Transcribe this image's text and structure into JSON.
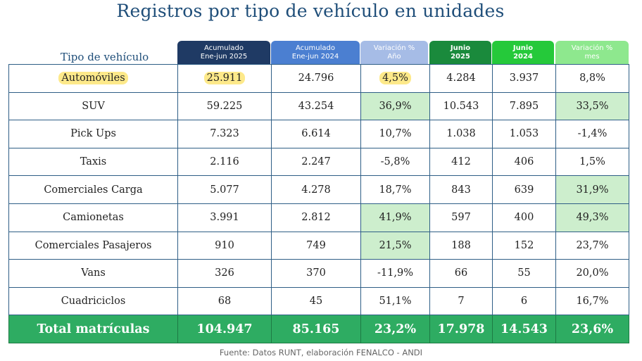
{
  "title": "Registros por tipo de vehículo en unidades",
  "row_header_label": "Tipo de vehículo",
  "columns": [
    {
      "line1": "Acumulado",
      "line2": "Ene-jun 2025",
      "color": "#1f3a64"
    },
    {
      "line1": "Acumulado",
      "line2": "Ene-jun 2024",
      "color": "#4b7fd1"
    },
    {
      "line1": "Variación %",
      "line2": "Año",
      "color": "#a6bce6"
    },
    {
      "line1": "Junio",
      "line2": "2025",
      "color": "#1a8a3c"
    },
    {
      "line1": "Junio",
      "line2": "2024",
      "color": "#25c93a"
    },
    {
      "line1": "Variación %",
      "line2": "mes",
      "color": "#8ee88e"
    }
  ],
  "rows": [
    {
      "label": "Automóviles",
      "values": [
        "25.911",
        "24.796",
        "4,5%",
        "4.284",
        "3.937",
        "8,8%"
      ]
    },
    {
      "label": "SUV",
      "values": [
        "59.225",
        "43.254",
        "36,9%",
        "10.543",
        "7.895",
        "33,5%"
      ]
    },
    {
      "label": "Pick Ups",
      "values": [
        "7.323",
        "6.614",
        "10,7%",
        "1.038",
        "1.053",
        "-1,4%"
      ]
    },
    {
      "label": "Taxis",
      "values": [
        "2.116",
        "2.247",
        "-5,8%",
        "412",
        "406",
        "1,5%"
      ]
    },
    {
      "label": "Comerciales Carga",
      "values": [
        "5.077",
        "4.278",
        "18,7%",
        "843",
        "639",
        "31,9%"
      ]
    },
    {
      "label": "Camionetas",
      "values": [
        "3.991",
        "2.812",
        "41,9%",
        "597",
        "400",
        "49,3%"
      ]
    },
    {
      "label": "Comerciales Pasajeros",
      "values": [
        "910",
        "749",
        "21,5%",
        "188",
        "152",
        "23,7%"
      ]
    },
    {
      "label": "Vans",
      "values": [
        "326",
        "370",
        "-11,9%",
        "66",
        "55",
        "20,0%"
      ]
    },
    {
      "label": "Cuadriciclos",
      "values": [
        "68",
        "45",
        "51,1%",
        "7",
        "6",
        "16,7%"
      ]
    }
  ],
  "total": {
    "label": "Total matrículas",
    "values": [
      "104.947",
      "85.165",
      "23,2%",
      "17.978",
      "14.543",
      "23,6%"
    ]
  },
  "source": "Fuente: Datos RUNT, elaboración FENALCO - ANDI",
  "colors": {
    "title": "#1f4e79",
    "highlight_green": "#cdeecd",
    "highlight_yellow": "#fde98a",
    "total_bg": "#2eac62"
  }
}
